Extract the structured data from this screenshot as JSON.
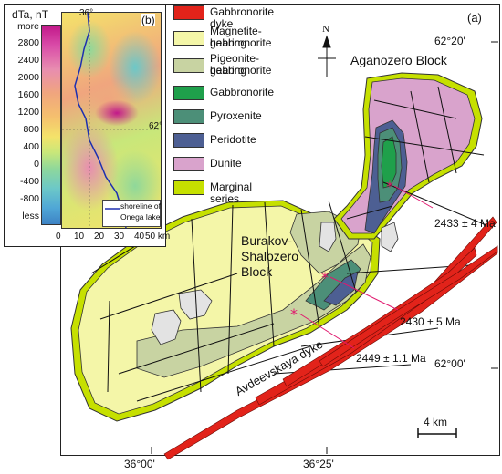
{
  "main_map": {
    "panel_label": "(a)",
    "lat_top": "62°20'",
    "lat_mid": "62°00'",
    "lon_left": "36°00'",
    "lon_right": "36°25'",
    "north_label": "N",
    "block_aganozero": "Aganozero Block",
    "block_burakov": [
      "Burakov-",
      "Shalozero",
      "Block"
    ],
    "dyke_label": "Avdeevskaya dyke",
    "scale_label": "4 km",
    "ages": [
      "2433 ± 4 Ma",
      "2430 ± 5 Ma",
      "2449 ± 1.1 Ma"
    ]
  },
  "legend": {
    "items": [
      {
        "lines": [
          "Gabbronorite dyke"
        ],
        "color": "#e2231a"
      },
      {
        "lines": [
          "Magnetite-bearing",
          "gabbronorite"
        ],
        "color": "#f4f6a8"
      },
      {
        "lines": [
          "Pigeonite-bearing",
          "gabbronorite"
        ],
        "color": "#c8d3a2"
      },
      {
        "lines": [
          "Gabbronorite"
        ],
        "color": "#1fa04b"
      },
      {
        "lines": [
          "Pyroxenite"
        ],
        "color": "#4c8f78"
      },
      {
        "lines": [
          "Peridotite"
        ],
        "color": "#4d5f93"
      },
      {
        "lines": [
          "Dunite"
        ],
        "color": "#d9a3cc"
      },
      {
        "lines": [
          "Marginal series"
        ],
        "color": "#c6e000"
      }
    ]
  },
  "inset": {
    "panel_label": "(b)",
    "colorbar_title": "dTa, nT",
    "colorbar_labels": [
      "more",
      "2800",
      "2400",
      "2000",
      "1600",
      "1200",
      "800",
      "400",
      "0",
      "-400",
      "-800",
      "less"
    ],
    "lon_label": "36°",
    "lat_label": "62°",
    "shoreline_label": [
      "shoreline of",
      "Onega lake"
    ],
    "scale_ticks": [
      "0",
      "10",
      "20",
      "30",
      "40",
      "50 km"
    ]
  }
}
